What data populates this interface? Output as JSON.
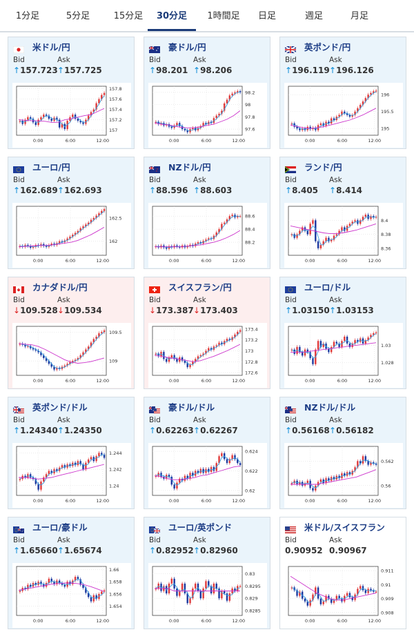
{
  "tabs": [
    {
      "label": "1分足"
    },
    {
      "label": "5分足"
    },
    {
      "label": "15分足"
    },
    {
      "label": "30分足",
      "active": true
    },
    {
      "label": "1時間足"
    },
    {
      "label": "日足"
    },
    {
      "label": "週足"
    },
    {
      "label": "月足"
    }
  ],
  "labels": {
    "bid": "Bid",
    "ask": "Ask"
  },
  "x_ticks": [
    "0:00",
    "6:00",
    "12:00"
  ],
  "colors": {
    "up": "#e03b3b",
    "down": "#1e3aa0",
    "ma_fast": "#3aa0e0",
    "ma_slow": "#cc33cc",
    "pair": "#1e3e86"
  },
  "cards": [
    {
      "pair": "米ドル/円",
      "flag": "jp",
      "dir": "up",
      "bid": "157.723",
      "ask": "157.725",
      "yticks": [
        "157.8",
        "157.6",
        "157.4",
        "157.2",
        "157"
      ],
      "ylim": [
        156.9,
        157.85
      ],
      "closes": [
        157.18,
        157.12,
        157.2,
        157.25,
        157.22,
        157.15,
        157.1,
        157.2,
        157.25,
        157.3,
        157.28,
        157.22,
        157.18,
        157.24,
        157.2,
        157.05,
        157.12,
        157.02,
        157.18,
        157.25,
        157.3,
        157.22,
        157.18,
        157.15,
        157.12,
        157.2,
        157.28,
        157.35,
        157.4,
        157.52,
        157.6,
        157.68,
        157.72
      ],
      "ma": [
        157.2,
        157.19,
        157.18,
        157.18,
        157.17,
        157.15,
        157.15,
        157.2,
        157.22,
        157.25,
        157.28,
        157.3,
        157.36,
        157.42
      ]
    },
    {
      "pair": "豪ドル/円",
      "flag": "au",
      "dir": "up",
      "bid": "98.201",
      "ask": "98.206",
      "yticks": [
        "98.2",
        "98",
        "97.8",
        "97.6"
      ],
      "ylim": [
        97.5,
        98.3
      ],
      "closes": [
        97.72,
        97.68,
        97.7,
        97.66,
        97.68,
        97.64,
        97.62,
        97.66,
        97.7,
        97.65,
        97.6,
        97.58,
        97.55,
        97.6,
        97.62,
        97.58,
        97.62,
        97.65,
        97.7,
        97.68,
        97.72,
        97.7,
        97.78,
        97.82,
        97.85,
        97.9,
        98.02,
        98.08,
        98.15,
        98.18,
        98.2,
        98.22,
        98.2
      ],
      "ma": [
        97.7,
        97.68,
        97.67,
        97.65,
        97.63,
        97.62,
        97.62,
        97.64,
        97.66,
        97.68,
        97.72,
        97.76,
        97.82,
        97.9
      ]
    },
    {
      "pair": "英ポンド/円",
      "flag": "gb",
      "dir": "up",
      "bid": "196.119",
      "ask": "196.126",
      "yticks": [
        "196",
        "195.5",
        "195"
      ],
      "ylim": [
        194.8,
        196.25
      ],
      "closes": [
        195.15,
        195.05,
        195.0,
        194.95,
        195.0,
        194.95,
        195.05,
        194.98,
        195.02,
        194.95,
        195.1,
        195.15,
        195.08,
        195.2,
        195.15,
        195.3,
        195.25,
        195.35,
        195.4,
        195.5,
        195.45,
        195.4,
        195.35,
        195.4,
        195.5,
        195.6,
        195.7,
        195.8,
        195.9,
        196.0,
        196.05,
        196.1,
        196.12
      ],
      "ma": [
        195.1,
        195.06,
        195.02,
        195.0,
        195.02,
        195.05,
        195.1,
        195.15,
        195.2,
        195.25,
        195.32,
        195.4,
        195.5,
        195.6
      ]
    },
    {
      "pair": "ユーロ/円",
      "flag": "eu",
      "dir": "up",
      "bid": "162.689",
      "ask": "162.693",
      "yticks": [
        "162.5",
        "162"
      ],
      "ylim": [
        161.7,
        162.75
      ],
      "closes": [
        161.9,
        161.88,
        161.92,
        161.9,
        161.86,
        161.88,
        161.92,
        161.9,
        161.94,
        161.9,
        161.88,
        161.92,
        161.95,
        161.92,
        161.96,
        162.0,
        161.98,
        162.02,
        162.06,
        162.1,
        162.14,
        162.18,
        162.22,
        162.28,
        162.32,
        162.36,
        162.4,
        162.46,
        162.5,
        162.55,
        162.6,
        162.65,
        162.69
      ],
      "ma": [
        161.88,
        161.89,
        161.9,
        161.91,
        161.91,
        161.92,
        161.94,
        161.96,
        161.98,
        162.02,
        162.08,
        162.14,
        162.22,
        162.3
      ]
    },
    {
      "pair": "NZドル/円",
      "flag": "nz",
      "dir": "up",
      "bid": "88.596",
      "ask": "88.603",
      "yticks": [
        "88.6",
        "88.4",
        "88.2"
      ],
      "ylim": [
        88.0,
        88.75
      ],
      "closes": [
        88.14,
        88.12,
        88.15,
        88.12,
        88.1,
        88.14,
        88.12,
        88.15,
        88.13,
        88.12,
        88.15,
        88.12,
        88.14,
        88.16,
        88.14,
        88.18,
        88.2,
        88.18,
        88.22,
        88.24,
        88.26,
        88.25,
        88.3,
        88.35,
        88.4,
        88.48,
        88.5,
        88.55,
        88.6,
        88.62,
        88.58,
        88.6,
        88.6
      ],
      "ma": [
        88.13,
        88.13,
        88.13,
        88.13,
        88.13,
        88.14,
        88.15,
        88.16,
        88.18,
        88.2,
        88.23,
        88.27,
        88.32,
        88.38
      ]
    },
    {
      "pair": "ランド/円",
      "flag": "za",
      "dir": "up",
      "bid": "8.405",
      "ask": "8.414",
      "yticks": [
        "8.4",
        "8.38",
        "8.36"
      ],
      "ylim": [
        8.35,
        8.42
      ],
      "closes": [
        8.38,
        8.375,
        8.38,
        8.385,
        8.39,
        8.385,
        8.38,
        8.395,
        8.4,
        8.37,
        8.36,
        8.365,
        8.37,
        8.375,
        8.37,
        8.372,
        8.378,
        8.38,
        8.385,
        8.39,
        8.385,
        8.392,
        8.395,
        8.398,
        8.4,
        8.395,
        8.4,
        8.405,
        8.408,
        8.402,
        8.406,
        8.404,
        8.405
      ],
      "ma": [
        8.392,
        8.39,
        8.388,
        8.386,
        8.384,
        8.382,
        8.381,
        8.381,
        8.382,
        8.384,
        8.386,
        8.389,
        8.392,
        8.395
      ]
    },
    {
      "pair": "カナダドル/円",
      "flag": "ca",
      "dir": "down",
      "bid": "109.528",
      "ask": "109.534",
      "yticks": [
        "109.5",
        "109"
      ],
      "ylim": [
        108.75,
        109.6
      ],
      "closes": [
        109.3,
        109.28,
        109.25,
        109.26,
        109.22,
        109.2,
        109.18,
        109.15,
        109.1,
        109.05,
        109.0,
        108.95,
        108.9,
        108.85,
        108.88,
        108.86,
        108.9,
        108.92,
        108.95,
        108.98,
        109.0,
        109.02,
        109.05,
        109.1,
        109.15,
        109.2,
        109.25,
        109.32,
        109.38,
        109.42,
        109.48,
        109.5,
        109.53
      ],
      "ma": [
        109.3,
        109.29,
        109.28,
        109.25,
        109.2,
        109.14,
        109.08,
        109.02,
        108.98,
        108.96,
        108.97,
        108.99,
        109.02,
        109.05
      ]
    },
    {
      "pair": "スイスフラン/円",
      "flag": "ch",
      "dir": "down",
      "bid": "173.387",
      "ask": "173.403",
      "yticks": [
        "173.4",
        "173.2",
        "173",
        "172.8",
        "172.6"
      ],
      "ylim": [
        172.55,
        173.45
      ],
      "closes": [
        172.95,
        172.9,
        172.98,
        172.85,
        172.8,
        172.88,
        172.92,
        172.85,
        172.8,
        172.88,
        172.82,
        172.78,
        172.7,
        172.75,
        172.8,
        172.85,
        172.9,
        172.92,
        172.95,
        173.0,
        173.05,
        173.02,
        173.08,
        173.1,
        173.15,
        173.12,
        173.18,
        173.22,
        173.2,
        173.25,
        173.3,
        173.35,
        173.38
      ],
      "ma": [
        172.92,
        172.9,
        172.88,
        172.86,
        172.84,
        172.82,
        172.8,
        172.82,
        172.86,
        172.9,
        172.95,
        173.0,
        173.06,
        173.12
      ]
    },
    {
      "pair": "ユーロ/ドル",
      "flag": "eu",
      "dir": "up",
      "bid": "1.03150",
      "ask": "1.03153",
      "yticks": [
        "1.03",
        "1.028"
      ],
      "ylim": [
        1.0265,
        1.0322
      ],
      "closes": [
        1.0295,
        1.029,
        1.0298,
        1.0292,
        1.0288,
        1.0295,
        1.0292,
        1.0285,
        1.0278,
        1.0295,
        1.0305,
        1.0298,
        1.0302,
        1.0296,
        1.0292,
        1.0298,
        1.0304,
        1.0302,
        1.0298,
        1.0305,
        1.031,
        1.0302,
        1.0298,
        1.0302,
        1.0306,
        1.0304,
        1.0308,
        1.0302,
        1.0306,
        1.0309,
        1.0312,
        1.0314,
        1.0315
      ],
      "ma": [
        1.0292,
        1.0292,
        1.0292,
        1.0293,
        1.0294,
        1.0295,
        1.0296,
        1.0297,
        1.0298,
        1.0299,
        1.03,
        1.0301,
        1.0302,
        1.0303
      ]
    },
    {
      "pair": "英ポンド/ドル",
      "flag": "gbus",
      "dir": "up",
      "bid": "1.24340",
      "ask": "1.24350",
      "yticks": [
        "1.244",
        "1.242",
        "1.24"
      ],
      "ylim": [
        1.2388,
        1.2448
      ],
      "closes": [
        1.2408,
        1.2412,
        1.241,
        1.2414,
        1.241,
        1.2408,
        1.2402,
        1.2395,
        1.2405,
        1.241,
        1.2414,
        1.2418,
        1.2415,
        1.242,
        1.2418,
        1.2422,
        1.2425,
        1.2422,
        1.2426,
        1.2424,
        1.2428,
        1.2425,
        1.243,
        1.2426,
        1.242,
        1.2428,
        1.2432,
        1.2435,
        1.243,
        1.2436,
        1.244,
        1.2438,
        1.2434
      ],
      "ma": [
        1.241,
        1.241,
        1.2409,
        1.2408,
        1.2409,
        1.241,
        1.2412,
        1.2414,
        1.2416,
        1.2418,
        1.242,
        1.2422,
        1.2424,
        1.2426
      ]
    },
    {
      "pair": "豪ドル/ドル",
      "flag": "auus",
      "dir": "up",
      "bid": "0.62263",
      "ask": "0.62267",
      "yticks": [
        "0.624",
        "0.622",
        "0.62"
      ],
      "ylim": [
        0.6195,
        0.6245
      ],
      "closes": [
        0.6215,
        0.6218,
        0.6214,
        0.6212,
        0.6216,
        0.6214,
        0.6206,
        0.6202,
        0.6208,
        0.6212,
        0.621,
        0.6215,
        0.6212,
        0.6218,
        0.6215,
        0.622,
        0.6218,
        0.6222,
        0.6218,
        0.6222,
        0.6219,
        0.6224,
        0.622,
        0.6228,
        0.6235,
        0.6238,
        0.6232,
        0.6228,
        0.6232,
        0.6236,
        0.6232,
        0.6228,
        0.6226
      ],
      "ma": [
        0.6215,
        0.6214,
        0.6212,
        0.6211,
        0.6211,
        0.6212,
        0.6213,
        0.6215,
        0.6216,
        0.6218,
        0.622,
        0.6222,
        0.6224,
        0.6225
      ]
    },
    {
      "pair": "NZドル/ドル",
      "flag": "nzus",
      "dir": "up",
      "bid": "0.56168",
      "ask": "0.56182",
      "yticks": [
        "0.562",
        "0.56"
      ],
      "ylim": [
        0.5592,
        0.5632
      ],
      "closes": [
        0.5602,
        0.5604,
        0.5601,
        0.5603,
        0.56,
        0.5602,
        0.5604,
        0.5598,
        0.5596,
        0.56,
        0.5603,
        0.5605,
        0.5602,
        0.5606,
        0.5604,
        0.5607,
        0.5605,
        0.5608,
        0.5606,
        0.561,
        0.5608,
        0.5611,
        0.5609,
        0.5612,
        0.5615,
        0.562,
        0.5618,
        0.5624,
        0.562,
        0.5617,
        0.5619,
        0.5618,
        0.5617
      ],
      "ma": [
        0.5601,
        0.5601,
        0.5601,
        0.5601,
        0.5601,
        0.5602,
        0.5603,
        0.5604,
        0.5605,
        0.5606,
        0.5607,
        0.5609,
        0.5611,
        0.5613
      ]
    },
    {
      "pair": "ユーロ/豪ドル",
      "flag": "euau",
      "dir": "up",
      "bid": "1.65660",
      "ask": "1.65674",
      "yticks": [
        "1.66",
        "1.658",
        "1.656",
        "1.654"
      ],
      "ylim": [
        1.6525,
        1.6605
      ],
      "closes": [
        1.6565,
        1.657,
        1.6568,
        1.6575,
        1.6572,
        1.6578,
        1.6575,
        1.658,
        1.6576,
        1.6572,
        1.6578,
        1.6585,
        1.658,
        1.6576,
        1.6582,
        1.6578,
        1.6575,
        1.6572,
        1.658,
        1.6576,
        1.6582,
        1.6588,
        1.6584,
        1.6575,
        1.657,
        1.6562,
        1.6555,
        1.6548,
        1.6558,
        1.6552,
        1.656,
        1.6564,
        1.6566
      ],
      "ma": [
        1.6566,
        1.6568,
        1.657,
        1.6572,
        1.6574,
        1.6576,
        1.6577,
        1.6578,
        1.6578,
        1.6577,
        1.6575,
        1.6572,
        1.6568,
        1.6564
      ]
    },
    {
      "pair": "ユーロ/英ポンド",
      "flag": "eugb",
      "dir": "up",
      "bid": "0.82952",
      "ask": "0.82960",
      "yticks": [
        "0.83",
        "0.8295",
        "0.829",
        "0.8285"
      ],
      "ylim": [
        0.8283,
        0.8303
      ],
      "closes": [
        0.8294,
        0.8296,
        0.8293,
        0.8295,
        0.8292,
        0.8296,
        0.8298,
        0.8294,
        0.8291,
        0.8293,
        0.8296,
        0.8292,
        0.8288,
        0.829,
        0.8294,
        0.8296,
        0.8293,
        0.829,
        0.8294,
        0.8297,
        0.8295,
        0.8292,
        0.8296,
        0.8294,
        0.829,
        0.8293,
        0.8292,
        0.8289,
        0.8292,
        0.8294,
        0.8293,
        0.8295,
        0.8295
      ],
      "ma": [
        0.8294,
        0.8294,
        0.8294,
        0.8293,
        0.8293,
        0.8293,
        0.8293,
        0.8293,
        0.8293,
        0.8293,
        0.8293,
        0.8293,
        0.8293,
        0.8293
      ]
    },
    {
      "pair": "米ドル/スイスフラン",
      "flag": "us",
      "dir": "plain",
      "bid": "0.90952",
      "ask": "0.90967",
      "yticks": [
        "0.911",
        "0.91",
        "0.909",
        "0.908"
      ],
      "ylim": [
        0.9078,
        0.9113
      ],
      "closes": [
        0.9098,
        0.9096,
        0.9092,
        0.9095,
        0.909,
        0.9088,
        0.9085,
        0.9089,
        0.9093,
        0.9098,
        0.909,
        0.9086,
        0.9088,
        0.9092,
        0.909,
        0.9087,
        0.9089,
        0.9092,
        0.909,
        0.9088,
        0.9092,
        0.9094,
        0.9091,
        0.9089,
        0.9093,
        0.9097,
        0.9099,
        0.9096,
        0.9094,
        0.9097,
        0.9096,
        0.9095,
        0.9095
      ],
      "ma": [
        0.9106,
        0.9103,
        0.91,
        0.9097,
        0.9094,
        0.9092,
        0.909,
        0.9089,
        0.9089,
        0.909,
        0.9091,
        0.9092,
        0.9093,
        0.9094
      ]
    }
  ]
}
